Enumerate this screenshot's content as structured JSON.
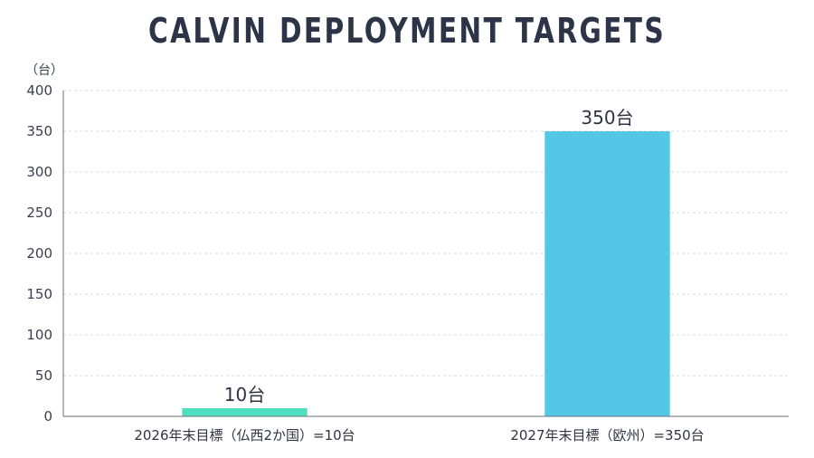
{
  "chart_data": {
    "type": "bar",
    "title": "CALVIN DEPLOYMENT TARGETS",
    "y_unit_label": "（台）",
    "categories": [
      "2026年末目標（仏西2か国）=10台",
      "2027年末目標（欧州）=350台"
    ],
    "values": [
      10,
      350
    ],
    "data_labels": [
      "10台",
      "350台"
    ],
    "bar_colors": [
      "#4fe0bf",
      "#55c7e6"
    ],
    "ylim": [
      0,
      400
    ],
    "yticks": [
      0,
      50,
      100,
      150,
      200,
      250,
      300,
      350,
      400
    ],
    "grid": true,
    "legend": "none"
  }
}
